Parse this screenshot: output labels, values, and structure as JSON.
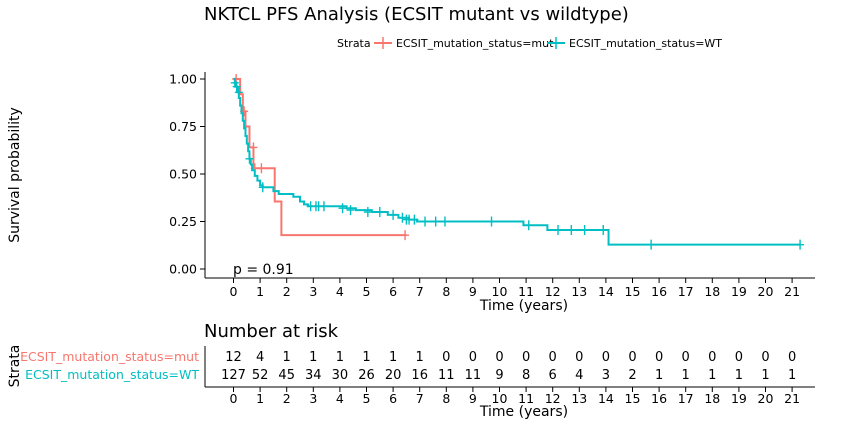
{
  "chart_data": {
    "type": "line",
    "title": "NKTCL PFS Analysis (ECSIT mutant vs wildtype)",
    "xlabel": "Time (years)",
    "ylabel": "Survival probability",
    "xlim": [
      0,
      21
    ],
    "ylim": [
      0,
      1
    ],
    "x_ticks": [
      0,
      1,
      2,
      3,
      4,
      5,
      6,
      7,
      8,
      9,
      10,
      11,
      12,
      13,
      14,
      15,
      16,
      17,
      18,
      19,
      20,
      21
    ],
    "y_ticks": [
      "0.00",
      "0.25",
      "0.50",
      "0.75",
      "1.00"
    ],
    "grid": false,
    "legend": {
      "title": "Strata",
      "placement": "top",
      "entries": [
        "ECSIT_mutation_status=mut",
        "ECSIT_mutation_status=WT"
      ]
    },
    "pvalue_label": "p = 0.91",
    "colors": {
      "mut": "#F8766D",
      "WT": "#00BFC4"
    },
    "series": [
      {
        "name": "ECSIT_mutation_status=mut",
        "color": "#F8766D",
        "steps": [
          [
            0,
            1.0
          ],
          [
            0.25,
            0.92
          ],
          [
            0.35,
            0.83
          ],
          [
            0.45,
            0.75
          ],
          [
            0.6,
            0.64
          ],
          [
            0.75,
            0.53
          ],
          [
            1.55,
            0.355
          ],
          [
            1.8,
            0.178
          ],
          [
            6.5,
            0.178
          ]
        ],
        "censor": [
          [
            0.1,
            1.0
          ],
          [
            0.4,
            0.83
          ],
          [
            0.75,
            0.64
          ],
          [
            0.8,
            0.53
          ],
          [
            1.05,
            0.53
          ],
          [
            6.45,
            0.178
          ]
        ]
      },
      {
        "name": "ECSIT_mutation_status=WT",
        "color": "#00BFC4",
        "steps": [
          [
            0,
            1.0
          ],
          [
            0.05,
            0.98
          ],
          [
            0.1,
            0.96
          ],
          [
            0.15,
            0.93
          ],
          [
            0.2,
            0.9
          ],
          [
            0.25,
            0.86
          ],
          [
            0.3,
            0.82
          ],
          [
            0.35,
            0.78
          ],
          [
            0.4,
            0.74
          ],
          [
            0.45,
            0.7
          ],
          [
            0.5,
            0.66
          ],
          [
            0.55,
            0.62
          ],
          [
            0.6,
            0.58
          ],
          [
            0.65,
            0.55
          ],
          [
            0.7,
            0.52
          ],
          [
            0.8,
            0.49
          ],
          [
            0.9,
            0.465
          ],
          [
            1.0,
            0.44
          ],
          [
            1.1,
            0.43
          ],
          [
            1.5,
            0.41
          ],
          [
            1.7,
            0.395
          ],
          [
            2.25,
            0.38
          ],
          [
            2.5,
            0.355
          ],
          [
            2.65,
            0.34
          ],
          [
            2.8,
            0.33
          ],
          [
            4.25,
            0.32
          ],
          [
            4.6,
            0.31
          ],
          [
            5.2,
            0.3
          ],
          [
            5.8,
            0.285
          ],
          [
            6.2,
            0.27
          ],
          [
            6.6,
            0.26
          ],
          [
            6.9,
            0.25
          ],
          [
            10.9,
            0.23
          ],
          [
            11.8,
            0.205
          ],
          [
            14.1,
            0.128
          ],
          [
            21.3,
            0.128
          ]
        ],
        "censor": [
          [
            0.05,
            0.98
          ],
          [
            0.12,
            0.96
          ],
          [
            0.2,
            0.93
          ],
          [
            0.6,
            0.58
          ],
          [
            1.1,
            0.43
          ],
          [
            2.9,
            0.33
          ],
          [
            3.1,
            0.33
          ],
          [
            3.2,
            0.33
          ],
          [
            3.4,
            0.33
          ],
          [
            4.1,
            0.32
          ],
          [
            4.4,
            0.31
          ],
          [
            5.05,
            0.3
          ],
          [
            5.5,
            0.3
          ],
          [
            6.0,
            0.285
          ],
          [
            6.35,
            0.27
          ],
          [
            6.5,
            0.26
          ],
          [
            6.6,
            0.26
          ],
          [
            6.8,
            0.26
          ],
          [
            7.2,
            0.25
          ],
          [
            7.6,
            0.25
          ],
          [
            7.95,
            0.25
          ],
          [
            9.7,
            0.25
          ],
          [
            11.1,
            0.23
          ],
          [
            12.2,
            0.205
          ],
          [
            12.7,
            0.205
          ],
          [
            13.2,
            0.205
          ],
          [
            13.9,
            0.205
          ],
          [
            15.7,
            0.128
          ],
          [
            21.3,
            0.128
          ]
        ]
      }
    ]
  },
  "risk_table": {
    "title": "Number at risk",
    "ylabel": "Strata",
    "xlabel": "Time (years)",
    "rows": [
      {
        "label": "ECSIT_mutation_status=mut",
        "color": "#F8766D",
        "values": [
          "12",
          "4",
          "1",
          "1",
          "1",
          "1",
          "1",
          "1",
          "0",
          "0",
          "0",
          "0",
          "0",
          "0",
          "0",
          "0",
          "0",
          "0",
          "0",
          "0",
          "0",
          "0"
        ]
      },
      {
        "label": "ECSIT_mutation_status=WT",
        "color": "#00BFC4",
        "values": [
          "127",
          "52",
          "45",
          "34",
          "30",
          "26",
          "20",
          "16",
          "11",
          "11",
          "9",
          "8",
          "6",
          "4",
          "3",
          "2",
          "1",
          "1",
          "1",
          "1",
          "1",
          "1"
        ]
      }
    ]
  }
}
